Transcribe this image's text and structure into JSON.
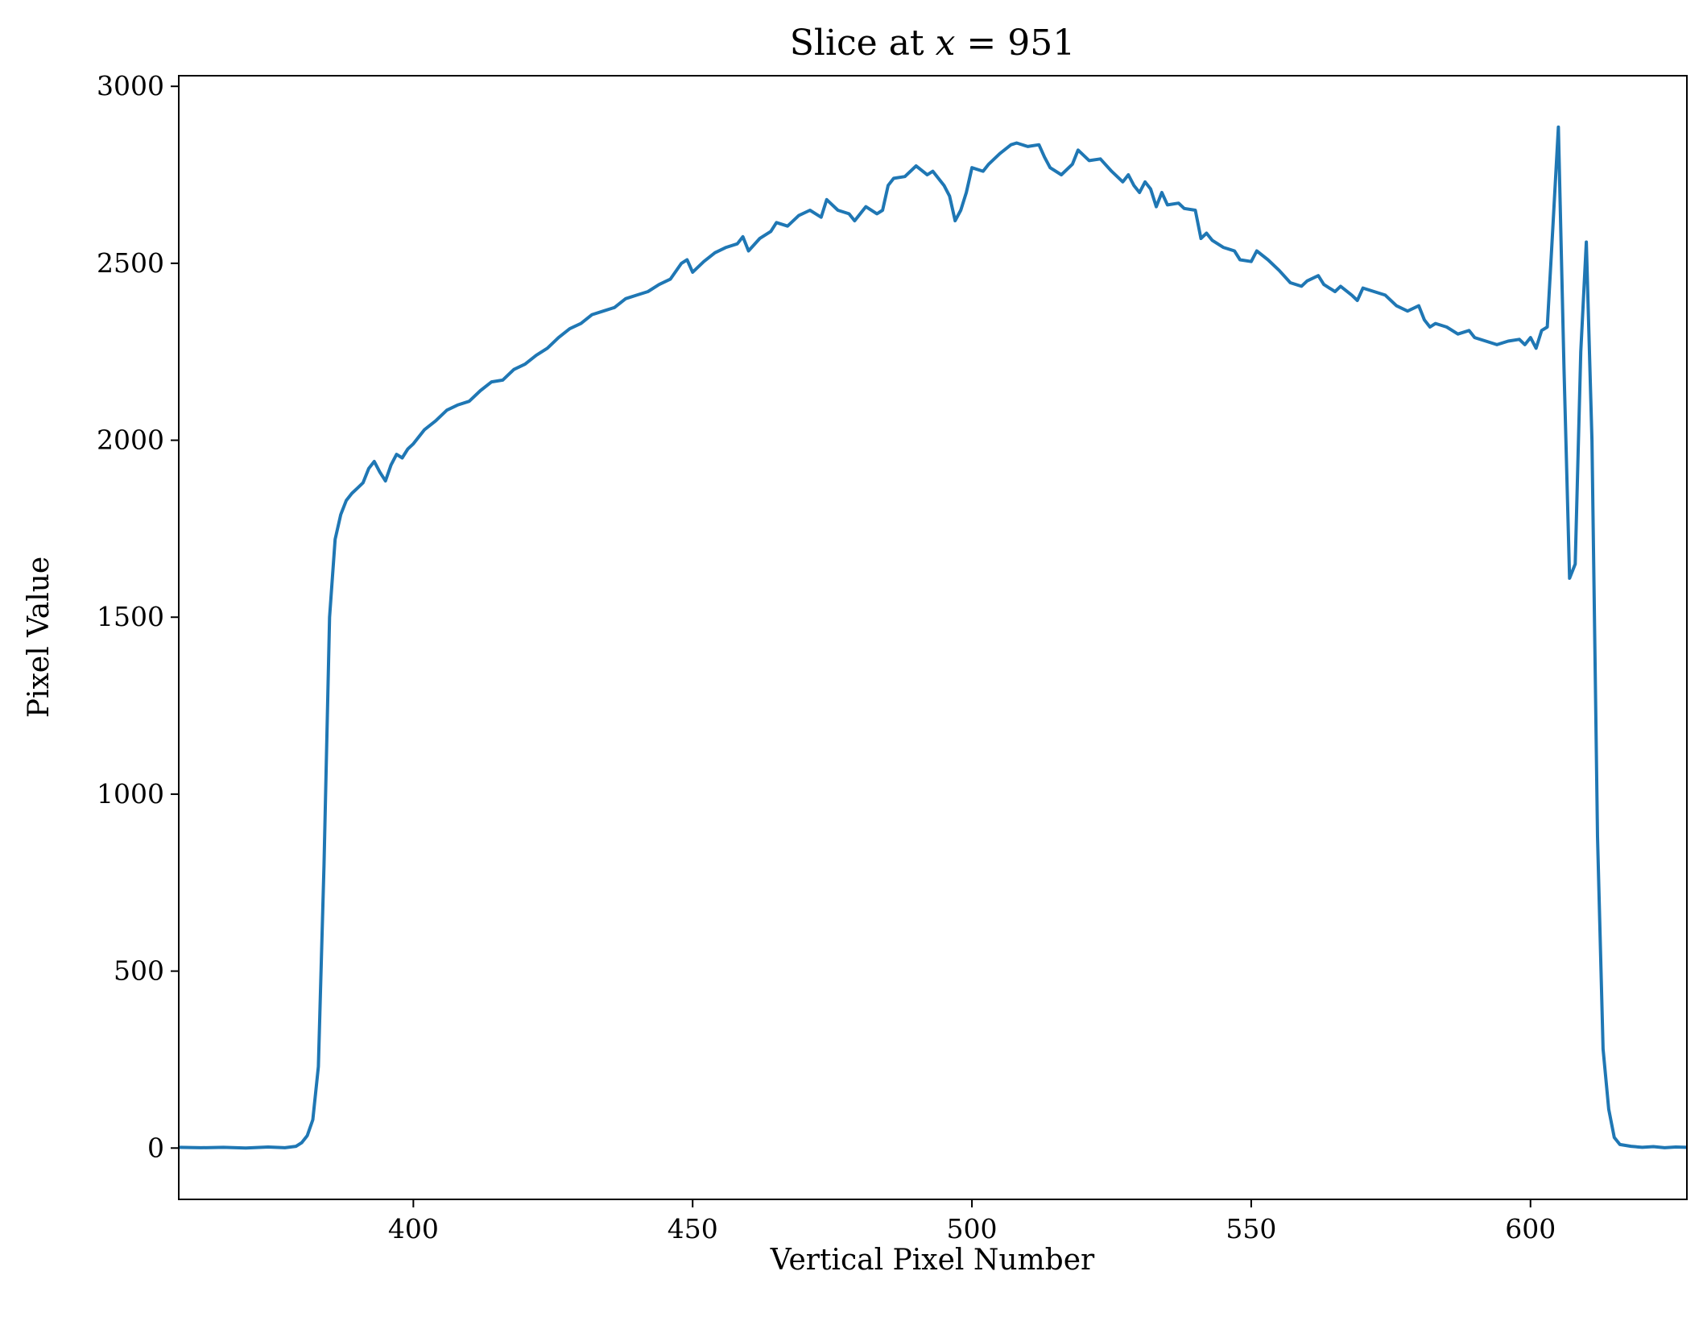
{
  "chart_data": {
    "type": "line",
    "title": "Slice at x = 951",
    "title_prefix": "Slice at ",
    "title_var": "x",
    "title_eq": " = 951",
    "xlabel": "Vertical Pixel Number",
    "ylabel": "Pixel Value",
    "xlim": [
      358,
      628
    ],
    "ylim": [
      -145,
      3030
    ],
    "xticks": [
      400,
      450,
      500,
      550,
      600
    ],
    "yticks": [
      0,
      500,
      1000,
      1500,
      2000,
      2500,
      3000
    ],
    "grid": false,
    "legend": "none",
    "series": [
      {
        "color": "#1f77b4",
        "points": [
          [
            358,
            2
          ],
          [
            362,
            1
          ],
          [
            366,
            2
          ],
          [
            370,
            0
          ],
          [
            374,
            3
          ],
          [
            377,
            1
          ],
          [
            379,
            5
          ],
          [
            380,
            15
          ],
          [
            381,
            35
          ],
          [
            382,
            80
          ],
          [
            383,
            230
          ],
          [
            384,
            800
          ],
          [
            385,
            1500
          ],
          [
            386,
            1720
          ],
          [
            387,
            1790
          ],
          [
            388,
            1830
          ],
          [
            389,
            1850
          ],
          [
            390,
            1865
          ],
          [
            391,
            1880
          ],
          [
            392,
            1920
          ],
          [
            393,
            1940
          ],
          [
            394,
            1910
          ],
          [
            395,
            1885
          ],
          [
            396,
            1930
          ],
          [
            397,
            1960
          ],
          [
            398,
            1950
          ],
          [
            399,
            1975
          ],
          [
            400,
            1990
          ],
          [
            402,
            2030
          ],
          [
            404,
            2055
          ],
          [
            406,
            2085
          ],
          [
            408,
            2100
          ],
          [
            410,
            2110
          ],
          [
            412,
            2140
          ],
          [
            414,
            2165
          ],
          [
            416,
            2170
          ],
          [
            418,
            2200
          ],
          [
            420,
            2215
          ],
          [
            422,
            2240
          ],
          [
            424,
            2260
          ],
          [
            426,
            2290
          ],
          [
            428,
            2315
          ],
          [
            430,
            2330
          ],
          [
            432,
            2355
          ],
          [
            434,
            2365
          ],
          [
            436,
            2375
          ],
          [
            438,
            2400
          ],
          [
            440,
            2410
          ],
          [
            442,
            2420
          ],
          [
            444,
            2440
          ],
          [
            446,
            2455
          ],
          [
            448,
            2500
          ],
          [
            449,
            2510
          ],
          [
            450,
            2475
          ],
          [
            452,
            2505
          ],
          [
            454,
            2530
          ],
          [
            456,
            2545
          ],
          [
            458,
            2555
          ],
          [
            459,
            2575
          ],
          [
            460,
            2535
          ],
          [
            462,
            2570
          ],
          [
            464,
            2590
          ],
          [
            465,
            2615
          ],
          [
            467,
            2605
          ],
          [
            469,
            2635
          ],
          [
            471,
            2650
          ],
          [
            473,
            2630
          ],
          [
            474,
            2680
          ],
          [
            476,
            2650
          ],
          [
            478,
            2640
          ],
          [
            479,
            2620
          ],
          [
            481,
            2660
          ],
          [
            483,
            2640
          ],
          [
            484,
            2650
          ],
          [
            485,
            2720
          ],
          [
            486,
            2740
          ],
          [
            488,
            2745
          ],
          [
            490,
            2775
          ],
          [
            492,
            2750
          ],
          [
            493,
            2760
          ],
          [
            495,
            2720
          ],
          [
            496,
            2690
          ],
          [
            497,
            2620
          ],
          [
            498,
            2650
          ],
          [
            499,
            2700
          ],
          [
            500,
            2770
          ],
          [
            502,
            2760
          ],
          [
            503,
            2780
          ],
          [
            505,
            2810
          ],
          [
            507,
            2835
          ],
          [
            508,
            2840
          ],
          [
            510,
            2830
          ],
          [
            512,
            2835
          ],
          [
            513,
            2800
          ],
          [
            514,
            2770
          ],
          [
            516,
            2750
          ],
          [
            518,
            2780
          ],
          [
            519,
            2820
          ],
          [
            521,
            2790
          ],
          [
            523,
            2795
          ],
          [
            525,
            2760
          ],
          [
            527,
            2730
          ],
          [
            528,
            2750
          ],
          [
            529,
            2720
          ],
          [
            530,
            2700
          ],
          [
            531,
            2730
          ],
          [
            532,
            2710
          ],
          [
            533,
            2660
          ],
          [
            534,
            2700
          ],
          [
            535,
            2665
          ],
          [
            537,
            2670
          ],
          [
            538,
            2655
          ],
          [
            540,
            2650
          ],
          [
            541,
            2570
          ],
          [
            542,
            2585
          ],
          [
            543,
            2565
          ],
          [
            545,
            2545
          ],
          [
            547,
            2535
          ],
          [
            548,
            2510
          ],
          [
            550,
            2505
          ],
          [
            551,
            2535
          ],
          [
            553,
            2510
          ],
          [
            555,
            2480
          ],
          [
            557,
            2445
          ],
          [
            559,
            2435
          ],
          [
            560,
            2450
          ],
          [
            562,
            2465
          ],
          [
            563,
            2440
          ],
          [
            565,
            2420
          ],
          [
            566,
            2435
          ],
          [
            568,
            2410
          ],
          [
            569,
            2395
          ],
          [
            570,
            2430
          ],
          [
            572,
            2420
          ],
          [
            574,
            2410
          ],
          [
            576,
            2380
          ],
          [
            578,
            2365
          ],
          [
            580,
            2380
          ],
          [
            581,
            2340
          ],
          [
            582,
            2320
          ],
          [
            583,
            2330
          ],
          [
            585,
            2320
          ],
          [
            587,
            2300
          ],
          [
            589,
            2310
          ],
          [
            590,
            2290
          ],
          [
            592,
            2280
          ],
          [
            594,
            2270
          ],
          [
            596,
            2280
          ],
          [
            598,
            2285
          ],
          [
            599,
            2270
          ],
          [
            600,
            2290
          ],
          [
            601,
            2260
          ],
          [
            602,
            2310
          ],
          [
            603,
            2320
          ],
          [
            604,
            2600
          ],
          [
            605,
            2885
          ],
          [
            606,
            2200
          ],
          [
            607,
            1610
          ],
          [
            608,
            1650
          ],
          [
            609,
            2250
          ],
          [
            610,
            2560
          ],
          [
            611,
            2000
          ],
          [
            612,
            880
          ],
          [
            613,
            280
          ],
          [
            614,
            110
          ],
          [
            615,
            30
          ],
          [
            616,
            10
          ],
          [
            618,
            5
          ],
          [
            620,
            2
          ],
          [
            622,
            4
          ],
          [
            624,
            1
          ],
          [
            626,
            3
          ],
          [
            628,
            2
          ]
        ]
      }
    ]
  }
}
